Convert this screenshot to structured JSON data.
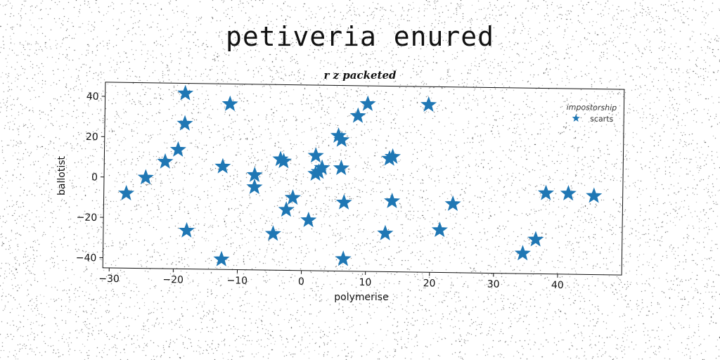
{
  "title": "petiveria enured",
  "colors": {
    "series": "#1f77b4",
    "background": "#ffffff",
    "text": "#111111"
  },
  "chart_data": {
    "type": "scatter",
    "title": "r z packeted",
    "xlabel": "polymerise",
    "ylabel": "ballotist",
    "xlim": [
      -31,
      50
    ],
    "ylim": [
      -45,
      47
    ],
    "xticks": [
      -30,
      -20,
      -10,
      0,
      10,
      20,
      30,
      40
    ],
    "yticks": [
      -40,
      -20,
      0,
      20,
      40
    ],
    "marker": "star",
    "grid": false,
    "legend": {
      "title": "impostorship",
      "placement": "top-right"
    },
    "series": [
      {
        "name": "scarts",
        "points": [
          {
            "x": -27.5,
            "y": -8
          },
          {
            "x": -24.5,
            "y": 0
          },
          {
            "x": -21.5,
            "y": 8
          },
          {
            "x": -19.5,
            "y": 14
          },
          {
            "x": -18.5,
            "y": 42
          },
          {
            "x": -18.5,
            "y": 27
          },
          {
            "x": -18,
            "y": -26
          },
          {
            "x": -12.5,
            "y": 6
          },
          {
            "x": -11.5,
            "y": 37
          },
          {
            "x": -12.5,
            "y": -40
          },
          {
            "x": -7.5,
            "y": 2
          },
          {
            "x": -7.5,
            "y": -4
          },
          {
            "x": -3.5,
            "y": 10
          },
          {
            "x": -3,
            "y": 9
          },
          {
            "x": -2.5,
            "y": -15
          },
          {
            "x": -1.5,
            "y": -9
          },
          {
            "x": -4.5,
            "y": -27
          },
          {
            "x": 1,
            "y": -20
          },
          {
            "x": 2,
            "y": 12
          },
          {
            "x": 2,
            "y": 3
          },
          {
            "x": 2.5,
            "y": 4
          },
          {
            "x": 3,
            "y": 6
          },
          {
            "x": 5.5,
            "y": 22
          },
          {
            "x": 6,
            "y": 20
          },
          {
            "x": 6,
            "y": 6
          },
          {
            "x": 6.5,
            "y": -11
          },
          {
            "x": 6.5,
            "y": -39
          },
          {
            "x": 8.5,
            "y": 32
          },
          {
            "x": 10,
            "y": 38
          },
          {
            "x": 13,
            "y": -26
          },
          {
            "x": 13.5,
            "y": 11
          },
          {
            "x": 14,
            "y": 12
          },
          {
            "x": 14,
            "y": -10
          },
          {
            "x": 19.5,
            "y": 38
          },
          {
            "x": 21.5,
            "y": -24
          },
          {
            "x": 23.5,
            "y": -11
          },
          {
            "x": 34.5,
            "y": -35
          },
          {
            "x": 36.5,
            "y": -28
          },
          {
            "x": 38,
            "y": -5
          },
          {
            "x": 41.5,
            "y": -5
          },
          {
            "x": 45.5,
            "y": -6
          }
        ]
      }
    ]
  }
}
